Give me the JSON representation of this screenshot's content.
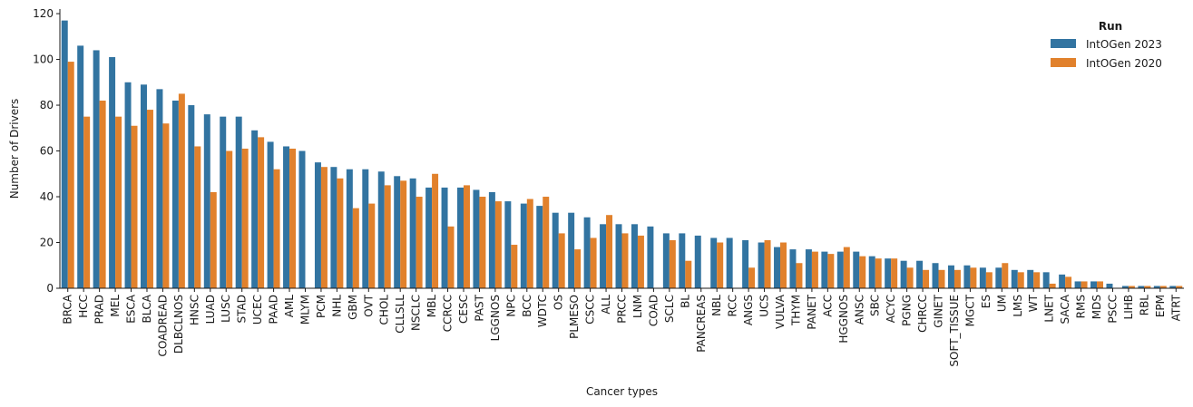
{
  "chart_data": {
    "type": "bar",
    "xlabel": "Cancer types",
    "ylabel": "Number of Drivers",
    "ylim": [
      0,
      122
    ],
    "yticks": [
      0,
      20,
      40,
      60,
      80,
      100,
      120
    ],
    "grid": false,
    "legend": {
      "title": "Run",
      "placement": "top-right"
    },
    "categories": [
      "BRCA",
      "HCC",
      "PRAD",
      "MEL",
      "ESCA",
      "BLCA",
      "COADREAD",
      "DLBCLNOS",
      "HNSC",
      "LUAD",
      "LUSC",
      "STAD",
      "UCEC",
      "PAAD",
      "AML",
      "MLYM",
      "PCM",
      "NHL",
      "GBM",
      "OVT",
      "CHOL",
      "CLLSLL",
      "NSCLC",
      "MBL",
      "CCRCC",
      "CESC",
      "PAST",
      "LGGNOS",
      "NPC",
      "BCC",
      "WDTC",
      "OS",
      "PLMESO",
      "CSCC",
      "ALL",
      "PRCC",
      "LNM",
      "COAD",
      "SCLC",
      "BL",
      "PANCREAS",
      "NBL",
      "RCC",
      "ANGS",
      "UCS",
      "VULVA",
      "THYM",
      "PANET",
      "ACC",
      "HGGNOS",
      "ANSC",
      "SBC",
      "ACYC",
      "PGNG",
      "CHRCC",
      "GINET",
      "SOFT_TISSUE",
      "MGCT",
      "ES",
      "UM",
      "LMS",
      "WT",
      "LNET",
      "SACA",
      "RMS",
      "MDS",
      "PSCC",
      "LIHB",
      "RBL",
      "EPM",
      "ATRT"
    ],
    "series": [
      {
        "name": "IntOGen 2023",
        "color": "#3274a1",
        "values": [
          117,
          106,
          104,
          101,
          90,
          89,
          87,
          82,
          80,
          76,
          75,
          75,
          69,
          64,
          62,
          60,
          55,
          53,
          52,
          52,
          51,
          49,
          48,
          44,
          44,
          44,
          43,
          42,
          38,
          37,
          36,
          33,
          33,
          31,
          28,
          28,
          28,
          27,
          24,
          24,
          23,
          22,
          22,
          21,
          20,
          18,
          17,
          17,
          16,
          16,
          16,
          14,
          13,
          12,
          12,
          11,
          10,
          10,
          9,
          9,
          8,
          8,
          7,
          6,
          3,
          3,
          2,
          1,
          1,
          1,
          1
        ]
      },
      {
        "name": "IntOGen 2020",
        "color": "#e1812c",
        "values": [
          99,
          75,
          82,
          75,
          71,
          78,
          72,
          85,
          62,
          42,
          60,
          61,
          66,
          52,
          61,
          0,
          53,
          48,
          35,
          37,
          45,
          47,
          40,
          50,
          27,
          45,
          40,
          38,
          19,
          39,
          40,
          24,
          17,
          22,
          32,
          24,
          23,
          0,
          21,
          12,
          0,
          20,
          0,
          9,
          21,
          20,
          11,
          16,
          15,
          18,
          14,
          13,
          13,
          9,
          8,
          8,
          8,
          9,
          7,
          11,
          7,
          7,
          2,
          5,
          3,
          3,
          0,
          1,
          1,
          1,
          1
        ]
      }
    ]
  }
}
